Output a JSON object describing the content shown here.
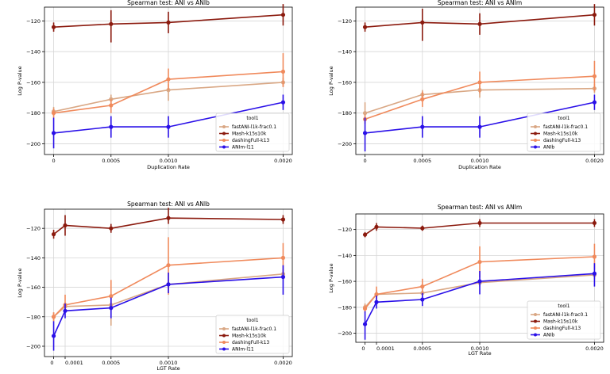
{
  "colors": {
    "fastANI": "#D9A784",
    "mash": "#8B1A0E",
    "dashing": "#F08A5C",
    "aniref": "#2A10E8"
  },
  "chart_data": [
    {
      "type": "line",
      "title": "Spearman test: ANI  vs  ANIb",
      "xlabel": "Duplication Rate",
      "ylabel": "Log P-value",
      "categories": [
        0,
        0.0005,
        0.001,
        0.002
      ],
      "xticks": [
        "0",
        "0.0005",
        "0.0010",
        "0.0020"
      ],
      "xticks_values": [
        0,
        0.0005,
        0.001,
        0.002
      ],
      "xlim": [
        -8e-05,
        0.00208
      ],
      "ylim": [
        -207,
        -111
      ],
      "yticks": [
        -200,
        -180,
        -160,
        -140,
        -120
      ],
      "grid": true,
      "legend_title": "tool1",
      "legend_position": "lower-right",
      "series": [
        {
          "name": "fastANI-l1k-frac0.1",
          "color_key": "fastANI",
          "values": [
            -179,
            -171,
            -165,
            -160
          ],
          "err_low": [
            3,
            3,
            7,
            3
          ],
          "err_high": [
            3,
            3,
            4,
            3
          ]
        },
        {
          "name": "Mash-k15s10k",
          "color_key": "mash",
          "values": [
            -124,
            -122,
            -121,
            -116
          ],
          "err_low": [
            3,
            12,
            7,
            7
          ],
          "err_high": [
            3,
            9,
            7,
            7
          ]
        },
        {
          "name": "dashingFull-k13",
          "color_key": "dashing",
          "values": [
            -180,
            -175,
            -158,
            -153
          ],
          "err_low": [
            3,
            5,
            7,
            10
          ],
          "err_high": [
            3,
            4,
            7,
            12
          ]
        },
        {
          "name": "ANIm-l11",
          "color_key": "aniref",
          "values": [
            -193,
            -189,
            -189,
            -173
          ],
          "err_low": [
            10,
            7,
            7,
            5
          ],
          "err_high": [
            10,
            7,
            7,
            5
          ]
        }
      ]
    },
    {
      "type": "line",
      "title": "Spearman test: ANI  vs  ANIm",
      "xlabel": "Duplication Rate",
      "ylabel": "Log P-value",
      "categories": [
        0,
        0.0005,
        0.001,
        0.002
      ],
      "xticks": [
        "0",
        "0.0005",
        "0.0010",
        "0.0020"
      ],
      "xticks_values": [
        0,
        0.0005,
        0.001,
        0.002
      ],
      "xlim": [
        -8e-05,
        0.00208
      ],
      "ylim": [
        -207,
        -111
      ],
      "yticks": [
        -200,
        -180,
        -160,
        -140,
        -120
      ],
      "grid": true,
      "legend_title": "tool1",
      "legend_position": "lower-right",
      "series": [
        {
          "name": "fastANI-l1k-frac0.1",
          "color_key": "fastANI",
          "values": [
            -180,
            -168,
            -165,
            -164
          ],
          "err_low": [
            5,
            3,
            5,
            3
          ],
          "err_high": [
            7,
            3,
            3,
            3
          ]
        },
        {
          "name": "Mash-k15s10k",
          "color_key": "mash",
          "values": [
            -124,
            -121,
            -122,
            -116
          ],
          "err_low": [
            3,
            12,
            7,
            7
          ],
          "err_high": [
            3,
            9,
            7,
            7
          ]
        },
        {
          "name": "dashingFull-k13",
          "color_key": "dashing",
          "values": [
            -184,
            -171,
            -160,
            -156
          ],
          "err_low": [
            3,
            5,
            7,
            10
          ],
          "err_high": [
            3,
            5,
            7,
            10
          ]
        },
        {
          "name": "ANIb",
          "color_key": "aniref",
          "values": [
            -193,
            -189,
            -189,
            -173
          ],
          "err_low": [
            12,
            7,
            7,
            5
          ],
          "err_high": [
            10,
            7,
            7,
            5
          ]
        }
      ]
    },
    {
      "type": "line",
      "title": "Spearman test: ANI  vs  ANIb",
      "xlabel": "LGT Rate",
      "ylabel": "Log P-value",
      "categories": [
        0,
        0.0001,
        0.0005,
        0.001,
        0.002
      ],
      "xticks": [
        "0",
        "0.0001",
        "0.0005",
        "0.0010",
        "0.0020"
      ],
      "xticks_values": [
        0,
        0.0001,
        0.0005,
        0.001,
        0.002
      ],
      "xlim": [
        -8e-05,
        0.00208
      ],
      "ylim": [
        -207,
        -107
      ],
      "yticks": [
        -200,
        -180,
        -160,
        -140,
        -120
      ],
      "grid": true,
      "legend_title": "tool1",
      "legend_position": "lower-right",
      "series": [
        {
          "name": "fastANI-l1k-frac0.1",
          "color_key": "fastANI",
          "values": [
            -180,
            -173,
            -172,
            -158,
            -151
          ],
          "err_low": [
            3,
            3,
            14,
            3,
            3
          ],
          "err_high": [
            3,
            3,
            8,
            3,
            3
          ]
        },
        {
          "name": "Mash-k15s10k",
          "color_key": "mash",
          "values": [
            -124,
            -118,
            -120,
            -113,
            -114
          ],
          "err_low": [
            3,
            7,
            3,
            4,
            3
          ],
          "err_high": [
            3,
            7,
            3,
            7,
            3
          ]
        },
        {
          "name": "dashingFull-k13",
          "color_key": "dashing",
          "values": [
            -180,
            -172,
            -166,
            -145,
            -140
          ],
          "err_low": [
            3,
            3,
            10,
            20,
            10
          ],
          "err_high": [
            3,
            7,
            11,
            19,
            10
          ]
        },
        {
          "name": "ANIm-l11",
          "color_key": "aniref",
          "values": [
            -193,
            -176,
            -174,
            -158,
            -153
          ],
          "err_low": [
            10,
            5,
            7,
            6,
            12
          ],
          "err_high": [
            10,
            5,
            7,
            8,
            8
          ]
        }
      ]
    },
    {
      "type": "line",
      "title": "Spearman test: ANI  vs  ANIm",
      "xlabel": "LGT Rate",
      "ylabel": "Log P-value",
      "categories": [
        0,
        0.0001,
        0.0005,
        0.001,
        0.002
      ],
      "xticks": [
        "0",
        "0.0001",
        "0.0005",
        "0.0010",
        "0.0020"
      ],
      "xticks_values": [
        0,
        0.0001,
        0.0005,
        0.001,
        0.002
      ],
      "xlim": [
        -8e-05,
        0.00208
      ],
      "ylim": [
        -207,
        -108
      ],
      "yticks": [
        -200,
        -180,
        -160,
        -140,
        -120
      ],
      "grid": true,
      "legend_title": "tool1",
      "legend_position": "lower-right",
      "series": [
        {
          "name": "fastANI-l1k-frac0.1",
          "color_key": "fastANI",
          "values": [
            -180,
            -170,
            -169,
            -161,
            -155
          ],
          "err_low": [
            3,
            3,
            5,
            3,
            3
          ],
          "err_high": [
            3,
            3,
            5,
            3,
            3
          ]
        },
        {
          "name": "Mash-k15s10k",
          "color_key": "mash",
          "values": [
            -124,
            -118,
            -119,
            -115,
            -115
          ],
          "err_low": [
            2,
            3,
            2,
            3,
            3
          ],
          "err_high": [
            2,
            3,
            2,
            3,
            3
          ]
        },
        {
          "name": "dashingFull-k13",
          "color_key": "dashing",
          "values": [
            -181,
            -170,
            -164,
            -145,
            -141
          ],
          "err_low": [
            3,
            4,
            6,
            12,
            10
          ],
          "err_high": [
            3,
            6,
            6,
            12,
            10
          ]
        },
        {
          "name": "ANIb",
          "color_key": "aniref",
          "values": [
            -193,
            -176,
            -174,
            -160,
            -154
          ],
          "err_low": [
            12,
            5,
            5,
            10,
            10
          ],
          "err_high": [
            10,
            5,
            5,
            8,
            8
          ]
        }
      ]
    }
  ]
}
